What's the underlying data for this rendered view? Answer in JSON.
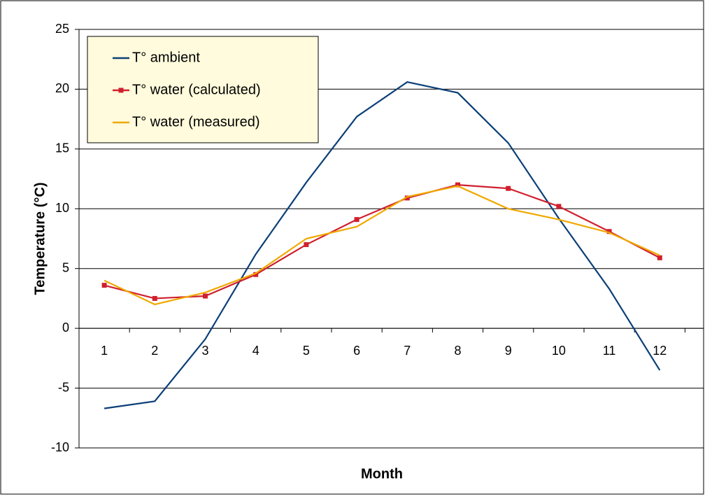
{
  "chart_data": {
    "type": "line",
    "x_label": "Month",
    "y_label": "Temperature (°C)",
    "categories": [
      "1",
      "2",
      "3",
      "4",
      "5",
      "6",
      "7",
      "8",
      "9",
      "10",
      "11",
      "12"
    ],
    "series": [
      {
        "name": "T° ambient",
        "color": "#0b3f77",
        "values": [
          -6.7,
          -6.1,
          -0.9,
          6.2,
          12.2,
          17.7,
          20.6,
          19.7,
          15.5,
          9.2,
          3.3,
          -3.5
        ]
      },
      {
        "name": "T° water (calculated)",
        "color": "#d0202e",
        "marker": "square",
        "values": [
          3.6,
          2.5,
          2.7,
          4.5,
          7.0,
          9.1,
          10.9,
          12.0,
          11.7,
          10.2,
          8.1,
          5.9
        ]
      },
      {
        "name": "T° water (measured)",
        "color": "#f0a800",
        "values": [
          4.0,
          2.0,
          3.0,
          4.6,
          7.5,
          8.5,
          11.0,
          11.9,
          10.0,
          9.1,
          8.0,
          6.1
        ]
      }
    ],
    "ylim": [
      -10,
      25
    ],
    "yticks": [
      -10,
      -5,
      0,
      5,
      10,
      15,
      20,
      25
    ],
    "grid": true,
    "legend": "upper-left"
  }
}
